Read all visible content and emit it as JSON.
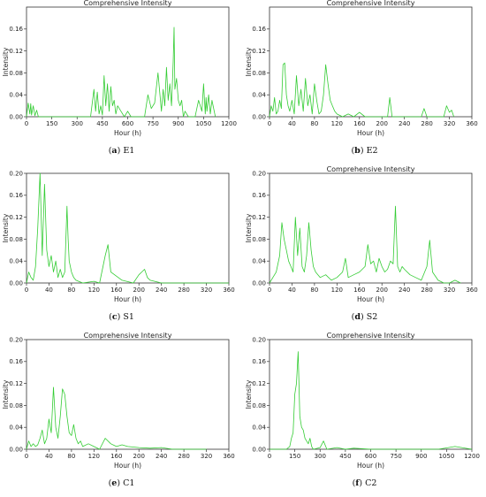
{
  "panels": [
    {
      "letter": "(a)",
      "name": "E1"
    },
    {
      "letter": "(b)",
      "name": "E2"
    },
    {
      "letter": "(c)",
      "name": "S1"
    },
    {
      "letter": "(d)",
      "name": "S2"
    },
    {
      "letter": "(e)",
      "name": "C1"
    },
    {
      "letter": "(f)",
      "name": "C2"
    }
  ],
  "chart_data": [
    {
      "type": "line",
      "title": "Comprehensive Intensity",
      "xlabel": "Hour (h)",
      "ylabel": "Intensity",
      "xlim": [
        0,
        1200
      ],
      "ylim": [
        0,
        0.2
      ],
      "xticks": [
        0,
        150,
        300,
        450,
        600,
        750,
        900,
        1050,
        1200
      ],
      "yticks": [
        0.0,
        0.04,
        0.08,
        0.12,
        0.16
      ],
      "color": "#33cc33",
      "x": [
        0,
        10,
        20,
        25,
        30,
        40,
        50,
        60,
        70,
        80,
        120,
        380,
        400,
        410,
        420,
        430,
        440,
        450,
        460,
        470,
        480,
        490,
        500,
        510,
        520,
        530,
        540,
        560,
        580,
        600,
        620,
        640,
        700,
        720,
        740,
        760,
        780,
        800,
        810,
        820,
        830,
        840,
        850,
        860,
        870,
        875,
        880,
        890,
        900,
        910,
        920,
        930,
        940,
        960,
        980,
        1000,
        1020,
        1040,
        1050,
        1060,
        1065,
        1070,
        1080,
        1090,
        1100,
        1120
      ],
      "y": [
        0.0,
        0.025,
        0.005,
        0.024,
        0.003,
        0.02,
        0.002,
        0.012,
        0.0,
        0.0,
        0.0,
        0.0,
        0.05,
        0.01,
        0.045,
        0.005,
        0.02,
        0.003,
        0.075,
        0.02,
        0.06,
        0.01,
        0.055,
        0.02,
        0.03,
        0.005,
        0.02,
        0.01,
        0.0,
        0.01,
        0.0,
        0.0,
        0.0,
        0.04,
        0.015,
        0.025,
        0.08,
        0.01,
        0.05,
        0.02,
        0.09,
        0.03,
        0.06,
        0.02,
        0.1,
        0.163,
        0.05,
        0.07,
        0.03,
        0.02,
        0.03,
        0.0,
        0.01,
        0.0,
        0.0,
        0.0,
        0.03,
        0.01,
        0.06,
        0.005,
        0.035,
        0.01,
        0.04,
        0.005,
        0.03,
        0.0
      ]
    },
    {
      "type": "line",
      "title": "Comprehensive Intensity",
      "xlabel": "Hour (h)",
      "ylabel": "Intensity",
      "xlim": [
        0,
        360
      ],
      "ylim": [
        0,
        0.2
      ],
      "xticks": [
        0,
        40,
        80,
        120,
        160,
        200,
        240,
        280,
        320,
        360
      ],
      "yticks": [
        0.0,
        0.04,
        0.08,
        0.12,
        0.16
      ],
      "color": "#33cc33",
      "x": [
        0,
        3,
        6,
        9,
        12,
        15,
        18,
        21,
        24,
        27,
        30,
        33,
        36,
        40,
        44,
        48,
        52,
        56,
        60,
        64,
        68,
        72,
        76,
        80,
        84,
        88,
        92,
        96,
        100,
        104,
        108,
        112,
        116,
        120,
        130,
        140,
        150,
        160,
        170,
        180,
        190,
        200,
        210,
        214,
        218,
        230,
        250,
        270,
        275,
        280,
        300,
        310,
        315,
        320,
        324,
        328
      ],
      "y": [
        0.0,
        0.02,
        0.01,
        0.035,
        0.005,
        0.01,
        0.03,
        0.015,
        0.095,
        0.098,
        0.04,
        0.02,
        0.01,
        0.03,
        0.005,
        0.075,
        0.02,
        0.05,
        0.01,
        0.07,
        0.02,
        0.04,
        0.005,
        0.06,
        0.03,
        0.005,
        0.01,
        0.04,
        0.095,
        0.06,
        0.03,
        0.02,
        0.01,
        0.005,
        0.0,
        0.005,
        0.0,
        0.008,
        0.0,
        0.0,
        0.0,
        0.0,
        0.0,
        0.035,
        0.0,
        0.0,
        0.0,
        0.0,
        0.015,
        0.0,
        0.0,
        0.0,
        0.02,
        0.008,
        0.012,
        0.0
      ]
    },
    {
      "type": "line",
      "title": "",
      "xlabel": "Hour (h)",
      "ylabel": "Intensity",
      "xlim": [
        0,
        360
      ],
      "ylim": [
        0,
        0.2
      ],
      "xticks": [
        0,
        40,
        80,
        120,
        160,
        200,
        240,
        280,
        320,
        360
      ],
      "yticks": [
        0.0,
        0.04,
        0.08,
        0.12,
        0.16,
        0.2
      ],
      "color": "#33cc33",
      "x": [
        0,
        4,
        8,
        12,
        16,
        20,
        24,
        28,
        32,
        36,
        40,
        44,
        48,
        52,
        56,
        60,
        64,
        68,
        72,
        74,
        76,
        80,
        84,
        88,
        100,
        120,
        130,
        140,
        145,
        150,
        170,
        190,
        200,
        205,
        210,
        215,
        220,
        240,
        260,
        280,
        320,
        360
      ],
      "y": [
        0.0,
        0.02,
        0.01,
        0.005,
        0.03,
        0.1,
        0.2,
        0.05,
        0.18,
        0.06,
        0.03,
        0.05,
        0.02,
        0.04,
        0.01,
        0.025,
        0.01,
        0.02,
        0.14,
        0.08,
        0.04,
        0.02,
        0.01,
        0.005,
        0.0,
        0.003,
        0.0,
        0.05,
        0.07,
        0.02,
        0.005,
        0.0,
        0.015,
        0.02,
        0.025,
        0.01,
        0.005,
        0.0,
        0.0,
        0.0,
        0.0,
        0.0
      ]
    },
    {
      "type": "line",
      "title": "Comprehensive Intensity",
      "xlabel": "Hour (h)",
      "ylabel": "Intensity",
      "xlim": [
        0,
        360
      ],
      "ylim": [
        0,
        0.2
      ],
      "xticks": [
        0,
        40,
        80,
        120,
        160,
        200,
        240,
        280,
        320,
        360
      ],
      "yticks": [
        0.0,
        0.04,
        0.08,
        0.12,
        0.16,
        0.2
      ],
      "color": "#33cc33",
      "x": [
        0,
        6,
        12,
        18,
        22,
        26,
        30,
        34,
        38,
        42,
        46,
        50,
        54,
        58,
        62,
        66,
        70,
        74,
        78,
        82,
        90,
        100,
        110,
        120,
        130,
        135,
        140,
        150,
        160,
        170,
        175,
        180,
        185,
        190,
        195,
        200,
        205,
        210,
        215,
        220,
        224,
        228,
        232,
        236,
        240,
        250,
        260,
        270,
        280,
        285,
        290,
        300,
        310,
        320,
        330,
        340
      ],
      "y": [
        0.0,
        0.01,
        0.02,
        0.05,
        0.11,
        0.08,
        0.06,
        0.04,
        0.03,
        0.02,
        0.12,
        0.05,
        0.1,
        0.03,
        0.02,
        0.05,
        0.11,
        0.06,
        0.03,
        0.02,
        0.01,
        0.015,
        0.005,
        0.01,
        0.02,
        0.045,
        0.01,
        0.015,
        0.02,
        0.03,
        0.07,
        0.035,
        0.04,
        0.02,
        0.045,
        0.03,
        0.02,
        0.025,
        0.04,
        0.035,
        0.14,
        0.03,
        0.02,
        0.03,
        0.025,
        0.015,
        0.01,
        0.005,
        0.03,
        0.078,
        0.02,
        0.005,
        0.0,
        0.0,
        0.005,
        0.0
      ]
    },
    {
      "type": "line",
      "title": "Comprehensive Intensity",
      "xlabel": "Hour (h)",
      "ylabel": "Intensity",
      "xlim": [
        0,
        360
      ],
      "ylim": [
        0,
        0.2
      ],
      "xticks": [
        0,
        40,
        80,
        120,
        160,
        200,
        240,
        280,
        320,
        360
      ],
      "yticks": [
        0.0,
        0.04,
        0.08,
        0.12,
        0.16,
        0.2
      ],
      "color": "#33cc33",
      "x": [
        0,
        4,
        8,
        12,
        16,
        20,
        24,
        28,
        32,
        36,
        40,
        44,
        48,
        52,
        56,
        60,
        64,
        68,
        72,
        76,
        80,
        84,
        88,
        92,
        96,
        100,
        110,
        120,
        130,
        140,
        150,
        160,
        170,
        180,
        200,
        220,
        240,
        260,
        280,
        300,
        320
      ],
      "y": [
        0.0,
        0.015,
        0.005,
        0.01,
        0.005,
        0.008,
        0.02,
        0.035,
        0.01,
        0.02,
        0.055,
        0.03,
        0.113,
        0.04,
        0.02,
        0.06,
        0.11,
        0.1,
        0.06,
        0.03,
        0.025,
        0.045,
        0.02,
        0.01,
        0.015,
        0.005,
        0.01,
        0.005,
        0.0,
        0.02,
        0.01,
        0.005,
        0.008,
        0.005,
        0.003,
        0.002,
        0.003,
        0.0,
        0.0,
        0.0,
        0.0
      ]
    },
    {
      "type": "line",
      "title": "Comprehensive Intensity",
      "xlabel": "Hour (h)",
      "ylabel": "Intensity",
      "xlim": [
        0,
        1200
      ],
      "ylim": [
        0,
        0.2
      ],
      "xticks": [
        0,
        150,
        300,
        450,
        600,
        750,
        900,
        1050,
        1200
      ],
      "yticks": [
        0.0,
        0.04,
        0.08,
        0.12,
        0.16,
        0.2
      ],
      "color": "#33cc33",
      "x": [
        0,
        100,
        120,
        130,
        140,
        150,
        160,
        170,
        180,
        190,
        200,
        210,
        220,
        230,
        240,
        250,
        260,
        300,
        320,
        340,
        400,
        450,
        500,
        600,
        700,
        800,
        900,
        1000,
        1100,
        1200
      ],
      "y": [
        0.0,
        0.0,
        0.005,
        0.02,
        0.03,
        0.1,
        0.12,
        0.178,
        0.06,
        0.04,
        0.035,
        0.02,
        0.015,
        0.01,
        0.02,
        0.005,
        0.0,
        0.003,
        0.015,
        0.0,
        0.003,
        0.0,
        0.002,
        0.0,
        0.0,
        0.0,
        0.0,
        0.0,
        0.005,
        0.0
      ]
    }
  ]
}
